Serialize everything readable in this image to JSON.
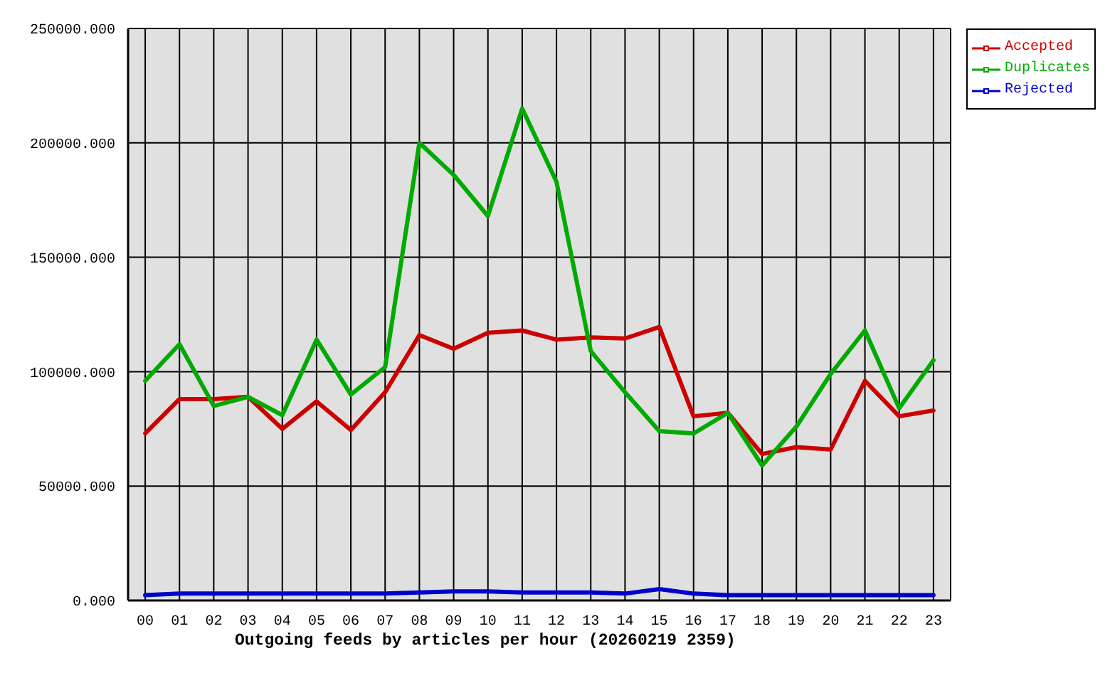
{
  "chart_data": {
    "type": "line",
    "xlabel": "Outgoing feeds by articles per hour (20260219 2359)",
    "categories": [
      "00",
      "01",
      "02",
      "03",
      "04",
      "05",
      "06",
      "07",
      "08",
      "09",
      "10",
      "11",
      "12",
      "13",
      "14",
      "15",
      "16",
      "17",
      "18",
      "19",
      "20",
      "21",
      "22",
      "23"
    ],
    "series": [
      {
        "name": "Accepted",
        "color": "#cc0000",
        "values": [
          73000,
          88000,
          88000,
          89000,
          75000,
          87000,
          74500,
          91000,
          116000,
          110000,
          117000,
          118000,
          114000,
          115000,
          114500,
          119500,
          80500,
          82000,
          64000,
          67000,
          66000,
          96000,
          80500,
          83000
        ]
      },
      {
        "name": "Duplicates",
        "color": "#00aa00",
        "values": [
          96000,
          112000,
          85000,
          89000,
          81000,
          114000,
          90000,
          102000,
          200000,
          186000,
          168000,
          215000,
          183000,
          109000,
          91000,
          74000,
          73000,
          82000,
          59000,
          76000,
          99000,
          118000,
          84000,
          105000
        ]
      },
      {
        "name": "Rejected",
        "color": "#0000cc",
        "values": [
          2300,
          3000,
          3000,
          3000,
          3000,
          3000,
          3000,
          3000,
          3500,
          4000,
          4000,
          3500,
          3500,
          3500,
          3000,
          5000,
          3000,
          2300,
          2300,
          2300,
          2300,
          2300,
          2300,
          2300
        ]
      }
    ],
    "ylim": [
      0,
      250000
    ],
    "yticks": [
      {
        "value": 0,
        "label": "0.000"
      },
      {
        "value": 50000,
        "label": "50000.000"
      },
      {
        "value": 100000,
        "label": "100000.000"
      },
      {
        "value": 150000,
        "label": "150000.000"
      },
      {
        "value": 200000,
        "label": "200000.000"
      },
      {
        "value": 250000,
        "label": "250000.000"
      }
    ],
    "grid": true,
    "legend": "top right",
    "marker": "none",
    "line_style": "solid"
  }
}
